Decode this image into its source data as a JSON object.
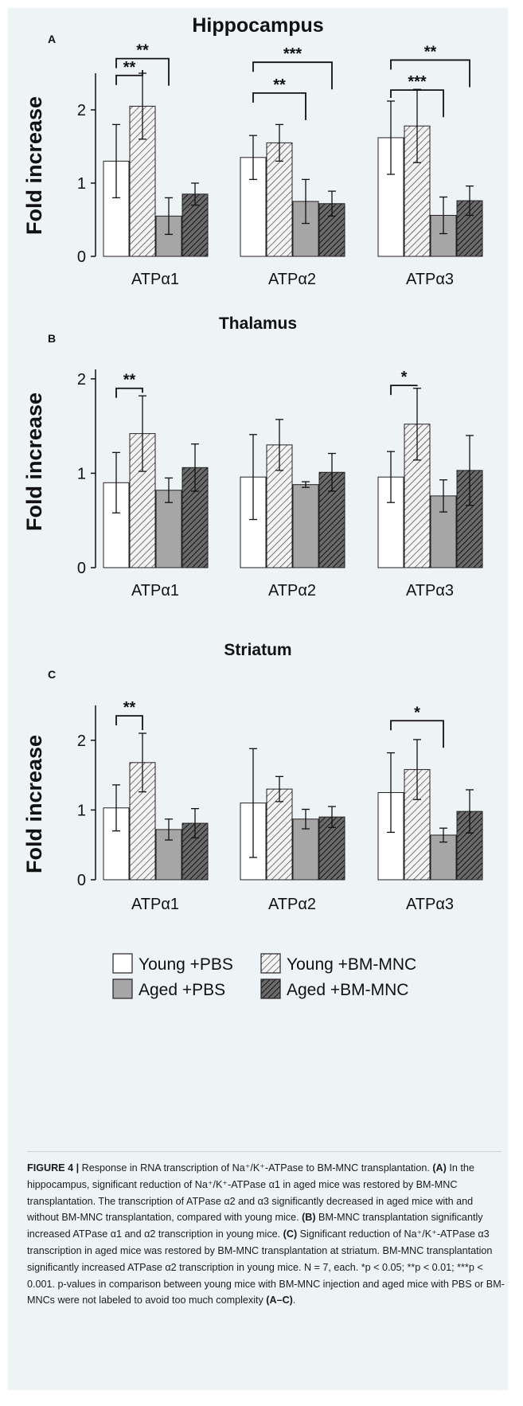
{
  "chart_data": [
    {
      "type": "bar",
      "letter": "A",
      "title": "Hippocampus",
      "ylabel": "Fold increase",
      "ylim": [
        0,
        2.5
      ],
      "yticks": [
        "0",
        "1",
        "2"
      ],
      "categories": [
        "ATPα1",
        "ATPα2",
        "ATPα3"
      ],
      "series": [
        {
          "name": "Young +PBS",
          "values": [
            1.3,
            1.35,
            1.62
          ],
          "errors": [
            0.5,
            0.3,
            0.5
          ]
        },
        {
          "name": "Young +BM-MNC",
          "values": [
            2.05,
            1.55,
            1.78
          ],
          "errors": [
            0.45,
            0.25,
            0.5
          ]
        },
        {
          "name": "Aged +PBS",
          "values": [
            0.55,
            0.75,
            0.56
          ],
          "errors": [
            0.25,
            0.3,
            0.25
          ]
        },
        {
          "name": "Aged +BM-MNC",
          "values": [
            0.85,
            0.72,
            0.76
          ],
          "errors": [
            0.15,
            0.17,
            0.2
          ]
        }
      ],
      "significance": [
        {
          "group": 0,
          "from": 0,
          "to": 1,
          "label": "**",
          "y": 2.47
        },
        {
          "group": 0,
          "from": 0,
          "to": 2,
          "label": "**",
          "y": 2.7
        },
        {
          "group": 1,
          "from": 0,
          "to": 2,
          "label": "**",
          "y": 2.23
        },
        {
          "group": 1,
          "from": 0,
          "to": 3,
          "label": "***",
          "y": 2.65
        },
        {
          "group": 2,
          "from": 0,
          "to": 2,
          "label": "***",
          "y": 2.27
        },
        {
          "group": 2,
          "from": 0,
          "to": 3,
          "label": "**",
          "y": 2.68
        }
      ]
    },
    {
      "type": "bar",
      "letter": "B",
      "title": "Thalamus",
      "ylabel": "Fold increase",
      "ylim": [
        0,
        2.1
      ],
      "yticks": [
        "0",
        "1",
        "2"
      ],
      "categories": [
        "ATPα1",
        "ATPα2",
        "ATPα3"
      ],
      "series": [
        {
          "name": "Young +PBS",
          "values": [
            0.9,
            0.96,
            0.96
          ],
          "errors": [
            0.32,
            0.45,
            0.27
          ]
        },
        {
          "name": "Young +BM-MNC",
          "values": [
            1.42,
            1.3,
            1.52
          ],
          "errors": [
            0.4,
            0.27,
            0.38
          ]
        },
        {
          "name": "Aged +PBS",
          "values": [
            0.82,
            0.88,
            0.76
          ],
          "errors": [
            0.13,
            0.03,
            0.17
          ]
        },
        {
          "name": "Aged +BM-MNC",
          "values": [
            1.06,
            1.01,
            1.03
          ],
          "errors": [
            0.25,
            0.2,
            0.37
          ]
        }
      ],
      "significance": [
        {
          "group": 0,
          "from": 0,
          "to": 1,
          "label": "**",
          "y": 1.9
        },
        {
          "group": 2,
          "from": 0,
          "to": 1,
          "label": "*",
          "y": 1.93
        }
      ]
    },
    {
      "type": "bar",
      "letter": "C",
      "title": "Striatum",
      "ylabel": "Fold increase",
      "ylim": [
        0,
        2.5
      ],
      "yticks": [
        "0",
        "1",
        "2"
      ],
      "categories": [
        "ATPα1",
        "ATPα2",
        "ATPα3"
      ],
      "series": [
        {
          "name": "Young +PBS",
          "values": [
            1.03,
            1.1,
            1.25
          ],
          "errors": [
            0.33,
            0.78,
            0.57
          ]
        },
        {
          "name": "Young +BM-MNC",
          "values": [
            1.68,
            1.3,
            1.58
          ],
          "errors": [
            0.42,
            0.18,
            0.43
          ]
        },
        {
          "name": "Aged +PBS",
          "values": [
            0.72,
            0.87,
            0.64
          ],
          "errors": [
            0.15,
            0.14,
            0.1
          ]
        },
        {
          "name": "Aged +BM-MNC",
          "values": [
            0.81,
            0.9,
            0.98
          ],
          "errors": [
            0.21,
            0.15,
            0.31
          ]
        }
      ],
      "significance": [
        {
          "group": 0,
          "from": 0,
          "to": 1,
          "label": "**",
          "y": 2.35
        },
        {
          "group": 2,
          "from": 0,
          "to": 2,
          "label": "*",
          "y": 2.28
        }
      ]
    }
  ],
  "legend": {
    "items": [
      {
        "label": "Young +PBS",
        "fill": "white"
      },
      {
        "label": "Young +BM-MNC",
        "fill": "hatch-light"
      },
      {
        "label": "Aged +PBS",
        "fill": "gray"
      },
      {
        "label": "Aged +BM-MNC",
        "fill": "hatch-dark"
      }
    ]
  },
  "colors": {
    "panel_bg": "#eef3f6",
    "young_pbs": "#ffffff",
    "aged_pbs": "#a6a6a6",
    "hatch_light_bg": "#f2f2f2",
    "hatch_dark_bg": "#5a5a5a",
    "ink": "#111111"
  },
  "caption": {
    "figure_label": "FIGURE 4 |",
    "title": " Response in RNA transcription of Na⁺/K⁺-ATPase to BM-MNC transplantation. ",
    "a_label": "(A)",
    "a_text": " In the hippocampus, significant reduction of Na⁺/K⁺-ATPase α1 in aged mice was restored by BM-MNC transplantation. The transcription of ATPase α2 and α3 significantly decreased in aged mice with and without BM-MNC transplantation, compared with young mice. ",
    "b_label": "(B)",
    "b_text": " BM-MNC transplantation significantly increased ATPase α1 and α2 transcription in young mice. ",
    "c_label": "(C)",
    "c_text": " Significant reduction of Na⁺/K⁺-ATPase α3 transcription in aged mice was restored by BM-MNC transplantation at striatum. BM-MNC transplantation significantly increased ATPase α2 transcription in young mice. N = 7, each. *p < 0.05; **p < 0.01; ***p < 0.001. p-values in comparison between young mice with BM-MNC injection and aged mice with PBS or BM-MNCs were not labeled to avoid too much complexity ",
    "end_label": "(A–C)",
    "end_text": "."
  }
}
